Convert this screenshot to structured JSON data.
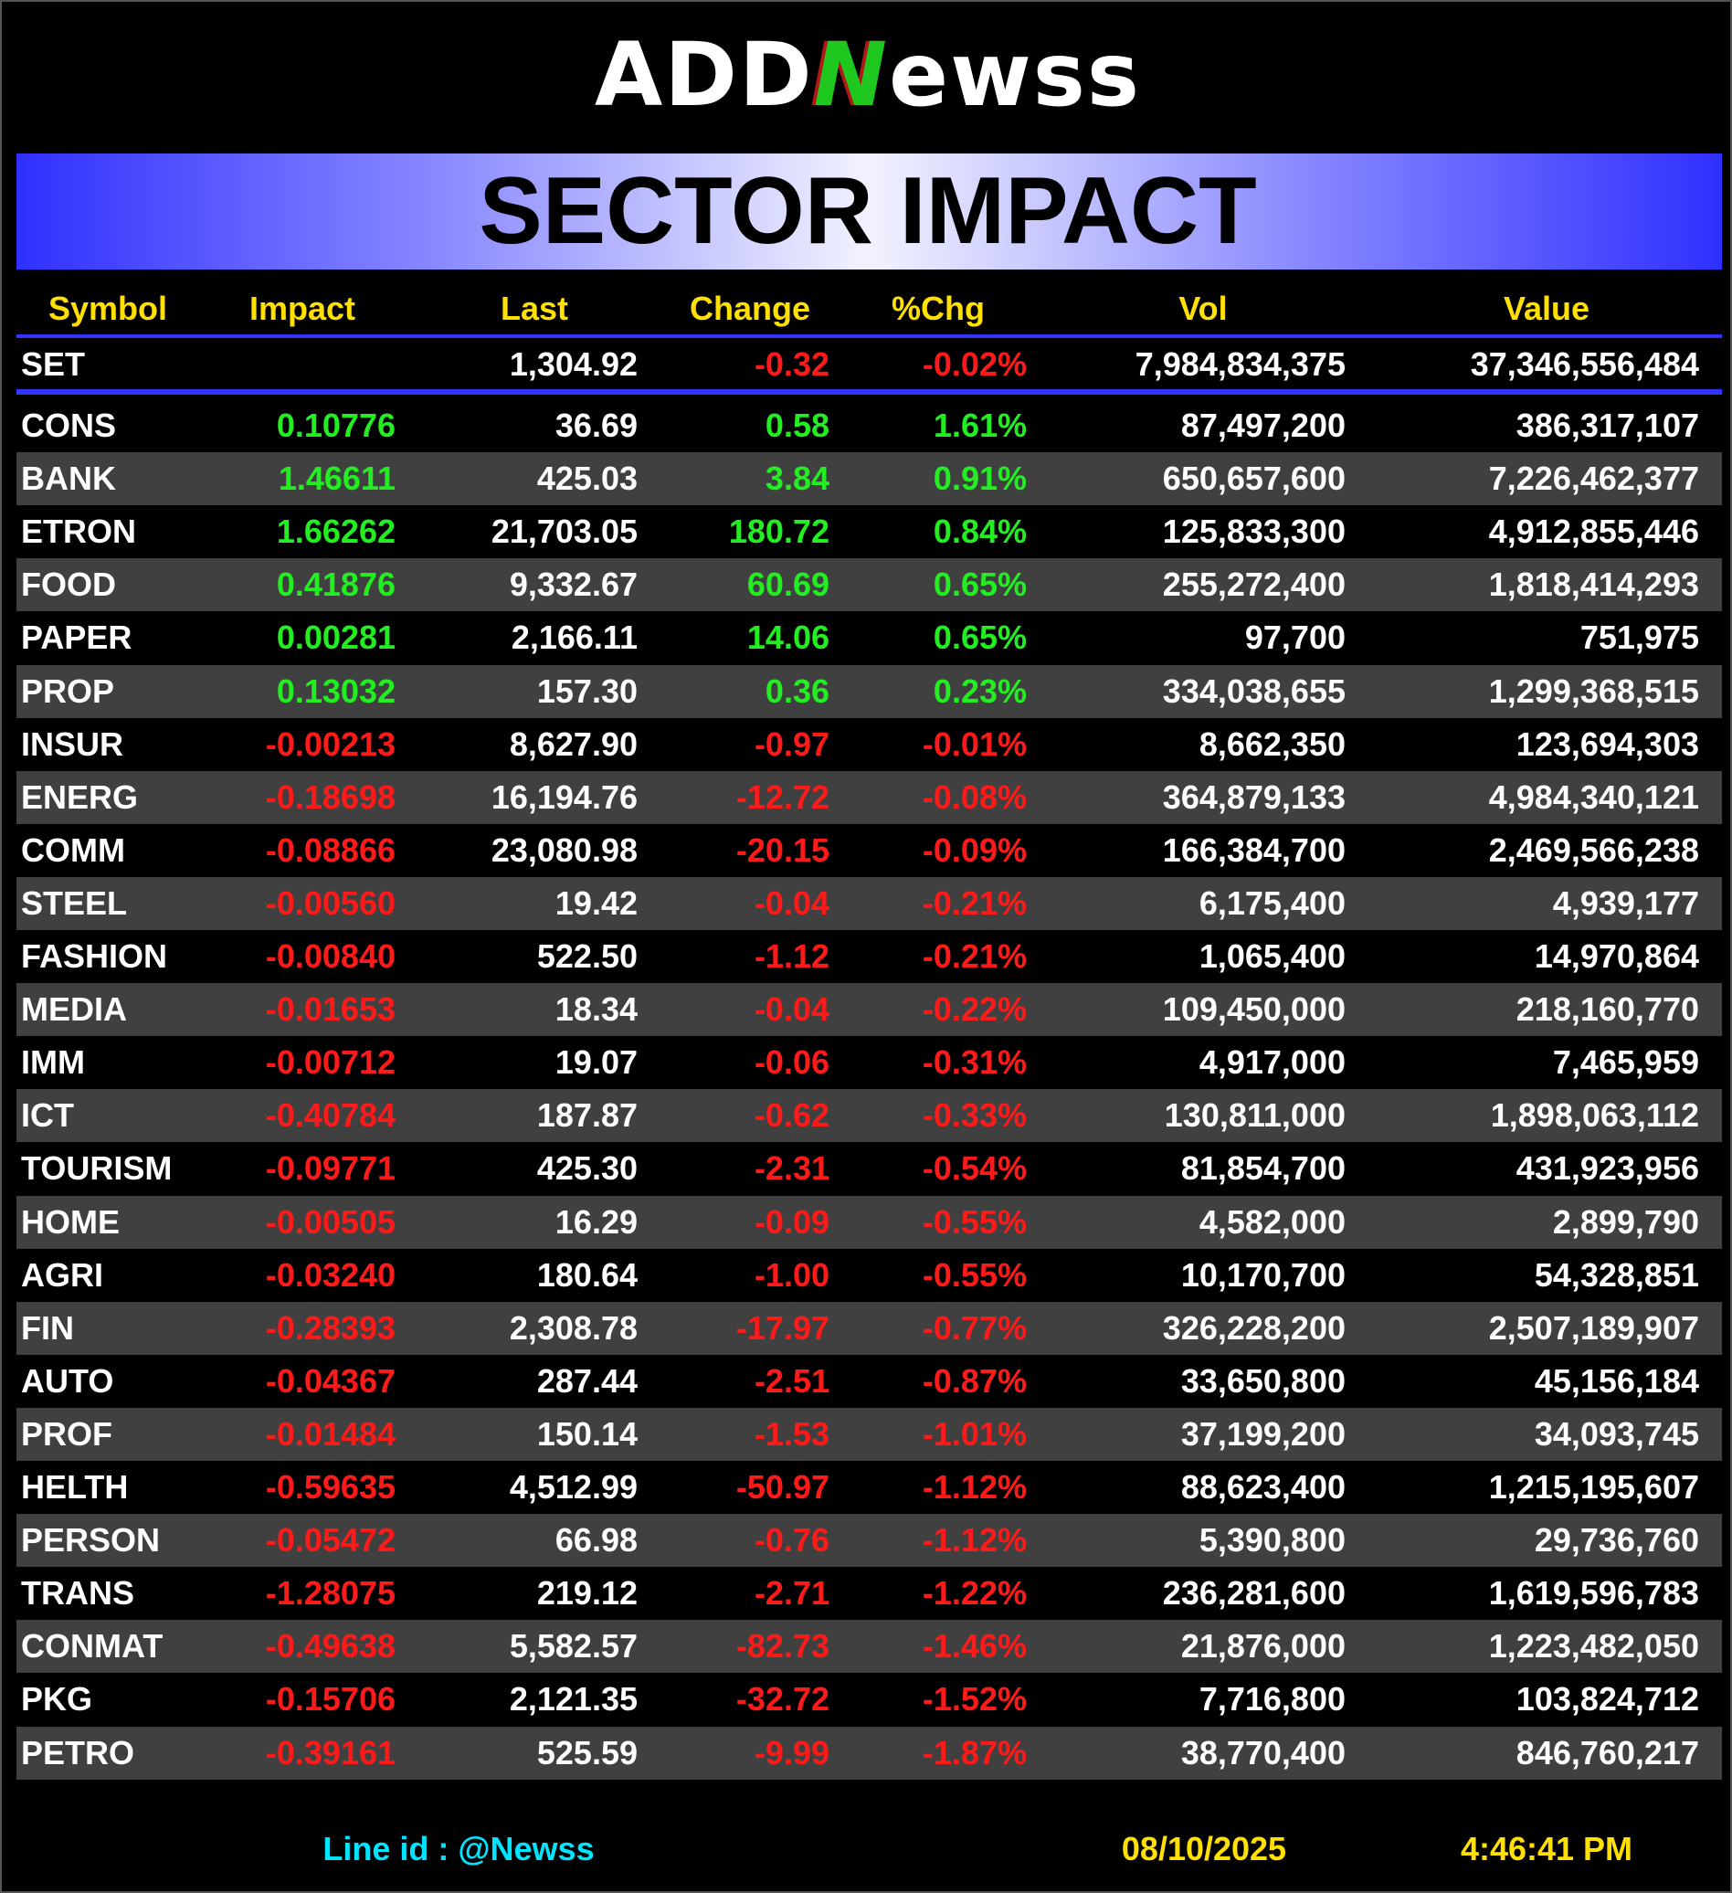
{
  "header": {
    "logo": [
      "ADD",
      "N",
      "ewss"
    ],
    "title": "SECTOR IMPACT"
  },
  "table": {
    "columns": [
      "Symbol",
      "Impact",
      "Last",
      "Change",
      "%Chg",
      "Vol",
      "Value"
    ],
    "index_row": [
      "SET",
      null,
      "1,304.92",
      "-0.32",
      "-0.02%",
      "7,984,834,375",
      "37,346,556,484"
    ],
    "rows": [
      [
        "CONS",
        "0.10776",
        "36.69",
        "0.58",
        "1.61%",
        "87,497,200",
        "386,317,107"
      ],
      [
        "BANK",
        "1.46611",
        "425.03",
        "3.84",
        "0.91%",
        "650,657,600",
        "7,226,462,377"
      ],
      [
        "ETRON",
        "1.66262",
        "21,703.05",
        "180.72",
        "0.84%",
        "125,833,300",
        "4,912,855,446"
      ],
      [
        "FOOD",
        "0.41876",
        "9,332.67",
        "60.69",
        "0.65%",
        "255,272,400",
        "1,818,414,293"
      ],
      [
        "PAPER",
        "0.00281",
        "2,166.11",
        "14.06",
        "0.65%",
        "97,700",
        "751,975"
      ],
      [
        "PROP",
        "0.13032",
        "157.30",
        "0.36",
        "0.23%",
        "334,038,655",
        "1,299,368,515"
      ],
      [
        "INSUR",
        "-0.00213",
        "8,627.90",
        "-0.97",
        "-0.01%",
        "8,662,350",
        "123,694,303"
      ],
      [
        "ENERG",
        "-0.18698",
        "16,194.76",
        "-12.72",
        "-0.08%",
        "364,879,133",
        "4,984,340,121"
      ],
      [
        "COMM",
        "-0.08866",
        "23,080.98",
        "-20.15",
        "-0.09%",
        "166,384,700",
        "2,469,566,238"
      ],
      [
        "STEEL",
        "-0.00560",
        "19.42",
        "-0.04",
        "-0.21%",
        "6,175,400",
        "4,939,177"
      ],
      [
        "FASHION",
        "-0.00840",
        "522.50",
        "-1.12",
        "-0.21%",
        "1,065,400",
        "14,970,864"
      ],
      [
        "MEDIA",
        "-0.01653",
        "18.34",
        "-0.04",
        "-0.22%",
        "109,450,000",
        "218,160,770"
      ],
      [
        "IMM",
        "-0.00712",
        "19.07",
        "-0.06",
        "-0.31%",
        "4,917,000",
        "7,465,959"
      ],
      [
        "ICT",
        "-0.40784",
        "187.87",
        "-0.62",
        "-0.33%",
        "130,811,000",
        "1,898,063,112"
      ],
      [
        "TOURISM",
        "-0.09771",
        "425.30",
        "-2.31",
        "-0.54%",
        "81,854,700",
        "431,923,956"
      ],
      [
        "HOME",
        "-0.00505",
        "16.29",
        "-0.09",
        "-0.55%",
        "4,582,000",
        "2,899,790"
      ],
      [
        "AGRI",
        "-0.03240",
        "180.64",
        "-1.00",
        "-0.55%",
        "10,170,700",
        "54,328,851"
      ],
      [
        "FIN",
        "-0.28393",
        "2,308.78",
        "-17.97",
        "-0.77%",
        "326,228,200",
        "2,507,189,907"
      ],
      [
        "AUTO",
        "-0.04367",
        "287.44",
        "-2.51",
        "-0.87%",
        "33,650,800",
        "45,156,184"
      ],
      [
        "PROF",
        "-0.01484",
        "150.14",
        "-1.53",
        "-1.01%",
        "37,199,200",
        "34,093,745"
      ],
      [
        "HELTH",
        "-0.59635",
        "4,512.99",
        "-50.97",
        "-1.12%",
        "88,623,400",
        "1,215,195,607"
      ],
      [
        "PERSON",
        "-0.05472",
        "66.98",
        "-0.76",
        "-1.12%",
        "5,390,800",
        "29,736,760"
      ],
      [
        "TRANS",
        "-1.28075",
        "219.12",
        "-2.71",
        "-1.22%",
        "236,281,600",
        "1,619,596,783"
      ],
      [
        "CONMAT",
        "-0.49638",
        "5,582.57",
        "-82.73",
        "-1.46%",
        "21,876,000",
        "1,223,482,050"
      ],
      [
        "PKG",
        "-0.15706",
        "2,121.35",
        "-32.72",
        "-1.52%",
        "7,716,800",
        "103,824,712"
      ],
      [
        "PETRO",
        "-0.39161",
        "525.59",
        "-9.99",
        "-1.87%",
        "38,770,400",
        "846,760,217"
      ]
    ]
  },
  "footer": {
    "line_label": "Line id  :",
    "line_id": "@Newss",
    "date": "08/10/2025",
    "time": "4:46:41 PM"
  }
}
